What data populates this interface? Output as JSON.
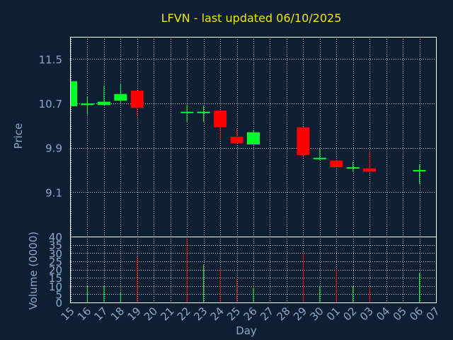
{
  "colors": {
    "background": "#0f1f33",
    "title": "#f2e600",
    "axis_text": "#8aa8c8",
    "frame": "#ffffff",
    "grid": "#ffffff",
    "up": "#00ff2a",
    "down": "#ff0000"
  },
  "chart_data": [
    {
      "type": "candlestick",
      "title": "LFVN - last updated 06/10/2025",
      "ylabel": "Price",
      "ylim": [
        8.3,
        11.9
      ],
      "yticks": [
        9.1,
        9.9,
        10.7,
        11.5
      ],
      "ytick_labels": [
        "9.1",
        "9.9",
        "10.7",
        "11.5"
      ],
      "grid": true,
      "x": [
        "15",
        "16",
        "17",
        "18",
        "19",
        "20",
        "21",
        "22",
        "23",
        "24",
        "25",
        "26",
        "27",
        "28",
        "29",
        "30",
        "01",
        "02",
        "03",
        "04",
        "05",
        "06",
        "07"
      ],
      "candles": [
        {
          "day": "15",
          "open": 10.65,
          "high": 11.1,
          "low": 10.65,
          "close": 11.1
        },
        {
          "day": "16",
          "open": 10.67,
          "high": 10.82,
          "low": 10.5,
          "close": 10.7
        },
        {
          "day": "17",
          "open": 10.67,
          "high": 11.02,
          "low": 10.67,
          "close": 10.73
        },
        {
          "day": "18",
          "open": 10.75,
          "high": 11.05,
          "low": 10.72,
          "close": 10.87
        },
        {
          "day": "19",
          "open": 10.93,
          "high": 10.93,
          "low": 10.47,
          "close": 10.62
        },
        {
          "day": "22",
          "open": 10.55,
          "high": 10.68,
          "low": 10.37,
          "close": 10.55
        },
        {
          "day": "23",
          "open": 10.53,
          "high": 10.66,
          "low": 10.37,
          "close": 10.55
        },
        {
          "day": "24",
          "open": 10.57,
          "high": 10.57,
          "low": 10.05,
          "close": 10.27
        },
        {
          "day": "25",
          "open": 10.1,
          "high": 10.25,
          "low": 9.98,
          "close": 9.98
        },
        {
          "day": "26",
          "open": 9.96,
          "high": 10.22,
          "low": 9.96,
          "close": 10.18
        },
        {
          "day": "29",
          "open": 10.27,
          "high": 10.27,
          "low": 9.75,
          "close": 9.77
        },
        {
          "day": "30",
          "open": 9.72,
          "high": 9.88,
          "low": 9.67,
          "close": 9.72
        },
        {
          "day": "01",
          "open": 9.67,
          "high": 9.67,
          "low": 9.54,
          "close": 9.55
        },
        {
          "day": "02",
          "open": 9.55,
          "high": 9.65,
          "low": 9.47,
          "close": 9.55
        },
        {
          "day": "03",
          "open": 9.53,
          "high": 9.83,
          "low": 9.47,
          "close": 9.47
        },
        {
          "day": "06",
          "open": 9.48,
          "high": 9.6,
          "low": 9.25,
          "close": 9.5
        }
      ]
    },
    {
      "type": "bar",
      "ylabel": "Volume (0000)",
      "xlabel": "Day",
      "ylim": [
        0,
        40
      ],
      "yticks": [
        0,
        5,
        10,
        15,
        20,
        25,
        30,
        35,
        40
      ],
      "ytick_labels": [
        "0",
        "5",
        "10",
        "15",
        "20",
        "25",
        "30",
        "35",
        "40"
      ],
      "grid": true,
      "categories": [
        "15",
        "16",
        "17",
        "18",
        "19",
        "20",
        "21",
        "22",
        "23",
        "24",
        "25",
        "26",
        "27",
        "28",
        "29",
        "30",
        "01",
        "02",
        "03",
        "04",
        "05",
        "06",
        "07"
      ],
      "bars": [
        {
          "day": "15",
          "value": 0,
          "direction": "up"
        },
        {
          "day": "16",
          "value": 10,
          "direction": "up"
        },
        {
          "day": "17",
          "value": 10,
          "direction": "up"
        },
        {
          "day": "18",
          "value": 6,
          "direction": "up"
        },
        {
          "day": "19",
          "value": 28,
          "direction": "down"
        },
        {
          "day": "22",
          "value": 39,
          "direction": "down"
        },
        {
          "day": "23",
          "value": 23,
          "direction": "up"
        },
        {
          "day": "24",
          "value": 21,
          "direction": "down"
        },
        {
          "day": "25",
          "value": 15,
          "direction": "down"
        },
        {
          "day": "26",
          "value": 9,
          "direction": "up"
        },
        {
          "day": "29",
          "value": 30,
          "direction": "down"
        },
        {
          "day": "30",
          "value": 10,
          "direction": "up"
        },
        {
          "day": "01",
          "value": 20,
          "direction": "down"
        },
        {
          "day": "02",
          "value": 10,
          "direction": "up"
        },
        {
          "day": "03",
          "value": 9,
          "direction": "down"
        },
        {
          "day": "06",
          "value": 18,
          "direction": "up"
        }
      ]
    }
  ]
}
